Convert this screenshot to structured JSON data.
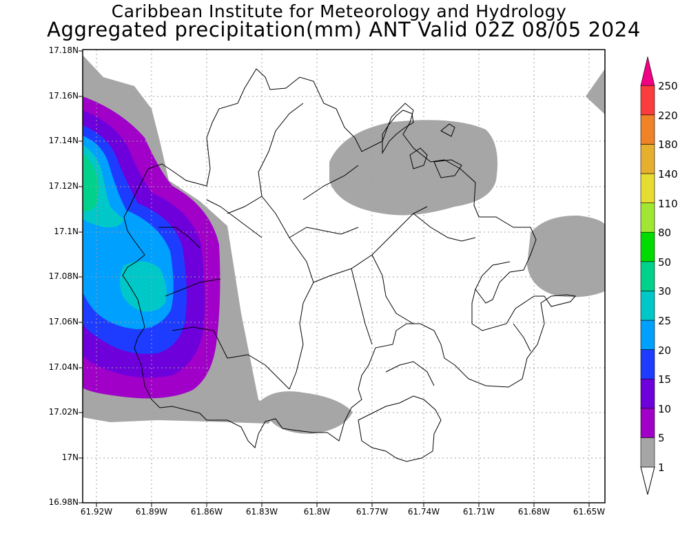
{
  "header": {
    "title_line1": "Caribbean Institute for Meteorology and Hydrology",
    "title_line2": "Aggregated precipitation(mm) ANT Valid 02Z 08/05 2024"
  },
  "axes": {
    "y_ticks": [
      "17.18N",
      "17.16N",
      "17.14N",
      "17.12N",
      "17.1N",
      "17.08N",
      "17.06N",
      "17.04N",
      "17.02N",
      "17N",
      "16.98N"
    ],
    "x_ticks": [
      "61.92W",
      "61.89W",
      "61.86W",
      "61.83W",
      "61.8W",
      "61.77W",
      "61.74W",
      "61.71W",
      "61.68W",
      "61.65W"
    ],
    "lat_range": [
      16.98,
      17.18
    ],
    "lon_range": [
      -61.9265,
      -61.6425
    ]
  },
  "colorbar": {
    "levels": [
      {
        "label": "1",
        "color": "#a6a6a6"
      },
      {
        "label": "5",
        "color": "#a000c8"
      },
      {
        "label": "10",
        "color": "#6e00dc"
      },
      {
        "label": "15",
        "color": "#1e3cff"
      },
      {
        "label": "20",
        "color": "#00a0ff"
      },
      {
        "label": "25",
        "color": "#00c8c8"
      },
      {
        "label": "30",
        "color": "#00d28c"
      },
      {
        "label": "50",
        "color": "#00dc00"
      },
      {
        "label": "80",
        "color": "#a0e632"
      },
      {
        "label": "110",
        "color": "#e6dc32"
      },
      {
        "label": "140",
        "color": "#e6af2d"
      },
      {
        "label": "180",
        "color": "#f08228"
      },
      {
        "label": "220",
        "color": "#fa3c3c"
      },
      {
        "label": "250",
        "color": "#f00082"
      }
    ]
  },
  "map_data": {
    "region": "ANT",
    "variable": "Aggregated precipitation",
    "units": "mm"
  }
}
